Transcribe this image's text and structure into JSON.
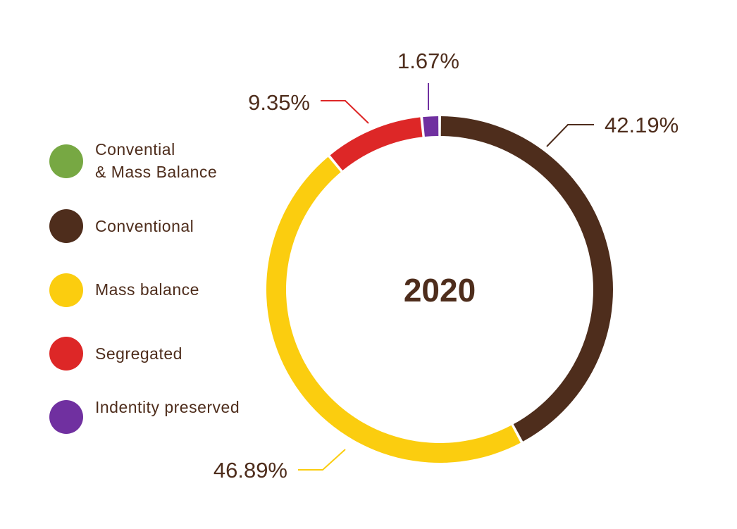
{
  "chart_data": {
    "type": "pie",
    "variant": "donut",
    "center_label": "2020",
    "categories": [
      "Conventional",
      "Mass balance",
      "Segregated",
      "Indentity preserved"
    ],
    "values": [
      42.19,
      46.89,
      9.35,
      1.67
    ],
    "value_labels": [
      "42.19%",
      "46.89%",
      "9.35%",
      "1.67%"
    ],
    "colors": [
      "#4e2d1c",
      "#fbcd0f",
      "#dd2727",
      "#7030a0"
    ],
    "legend_position": "left",
    "legend": [
      {
        "label": "Convential\n& Mass Balance",
        "color": "#77a843"
      },
      {
        "label": "Conventional",
        "color": "#4e2d1c"
      },
      {
        "label": "Mass balance",
        "color": "#fbcd0f"
      },
      {
        "label": "Segregated",
        "color": "#dd2727"
      },
      {
        "label": "Indentity preserved",
        "color": "#7030a0"
      }
    ]
  }
}
